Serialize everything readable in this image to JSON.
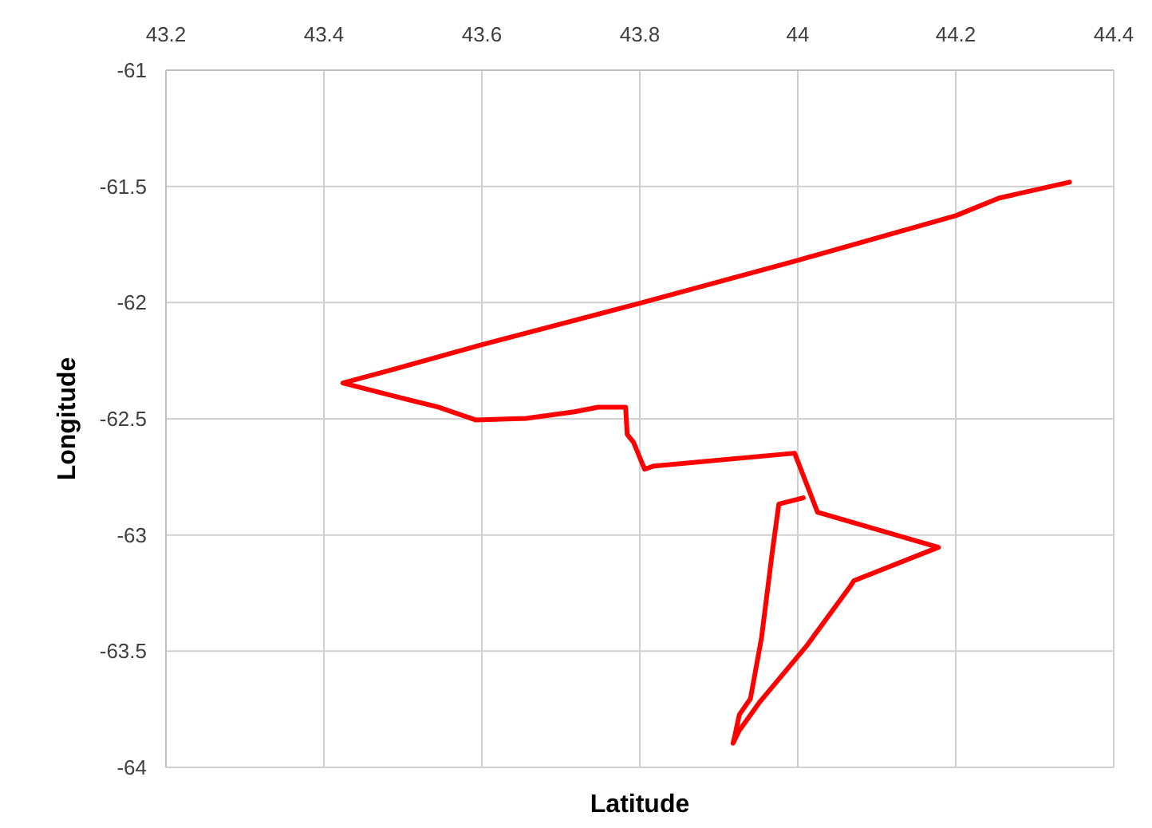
{
  "chart_data": {
    "type": "line",
    "xlabel": "Latitude",
    "ylabel": "Longitude",
    "xlim": [
      43.2,
      44.4
    ],
    "xticks": [
      43.2,
      43.4,
      43.6,
      43.8,
      44,
      44.2,
      44.4
    ],
    "ylim": [
      -64,
      -61
    ],
    "yticks": [
      -64,
      -63.5,
      -63,
      -62.5,
      -62,
      -61.5,
      -61
    ],
    "grid": true,
    "series": [
      {
        "color": "#ff0000",
        "x": [
          44.007,
          43.976,
          43.968,
          43.954,
          43.94,
          43.926,
          43.92,
          43.918,
          43.926,
          43.952,
          44.011,
          44.067,
          44.071,
          44.178,
          44.025,
          43.996,
          43.818,
          43.806,
          43.792,
          43.784,
          43.782,
          43.747,
          43.717,
          43.656,
          43.592,
          43.545,
          43.495,
          43.424,
          43.484,
          43.6,
          43.8,
          44.0,
          44.2,
          44.255,
          44.344
        ],
        "values": [
          -62.84,
          -62.867,
          -63.066,
          -63.444,
          -63.705,
          -63.773,
          -63.869,
          -63.896,
          -63.841,
          -63.718,
          -63.478,
          -63.218,
          -63.197,
          -63.053,
          -62.902,
          -62.648,
          -62.703,
          -62.717,
          -62.601,
          -62.567,
          -62.45,
          -62.45,
          -62.47,
          -62.498,
          -62.505,
          -62.45,
          -62.408,
          -62.346,
          -62.291,
          -62.181,
          -62.003,
          -61.818,
          -61.626,
          -61.55,
          -61.482
        ]
      }
    ]
  }
}
